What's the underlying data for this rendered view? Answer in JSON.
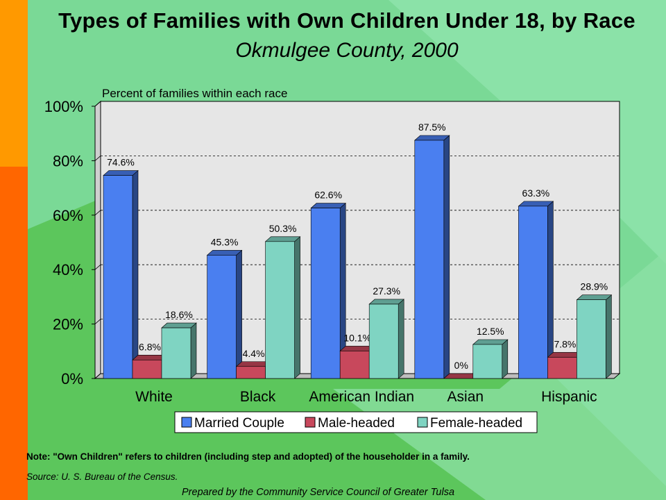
{
  "title": "Types of Families with Own Children Under 18, by Race",
  "subtitle": "Okmulgee County, 2000",
  "note": "Note:  \"Own Children\" refers to children (including step and adopted) of the householder in a family.",
  "source": "Source:  U. S. Bureau of the Census.",
  "prepared_by": "Prepared by the Community Service Council of Greater Tulsa",
  "colors": {
    "married": "#4a7ff0",
    "male": "#c8485c",
    "female": "#7fd4c2",
    "plot_bg": "#e6e6e6"
  },
  "chart_data": {
    "type": "bar",
    "ylabel": "Percent of families within each race",
    "ylim": [
      0,
      100
    ],
    "yticks": [
      "0%",
      "20%",
      "40%",
      "60%",
      "80%",
      "100%"
    ],
    "categories": [
      "White",
      "Black",
      "American Indian",
      "Asian",
      "Hispanic"
    ],
    "series": [
      {
        "name": "Married Couple",
        "values": [
          74.6,
          45.3,
          62.6,
          87.5,
          63.3
        ],
        "labels": [
          "74.6%",
          "45.3%",
          "62.6%",
          "87.5%",
          "63.3%"
        ]
      },
      {
        "name": "Male-headed",
        "values": [
          6.8,
          4.4,
          10.1,
          0,
          7.8
        ],
        "labels": [
          "6.8%",
          "4.4%",
          "10.1%",
          "0%",
          "7.8%"
        ]
      },
      {
        "name": "Female-headed",
        "values": [
          18.6,
          50.3,
          27.3,
          12.5,
          28.9
        ],
        "labels": [
          "18.6%",
          "50.3%",
          "27.3%",
          "12.5%",
          "28.9%"
        ]
      }
    ],
    "grid": true,
    "legend": "bottom"
  }
}
